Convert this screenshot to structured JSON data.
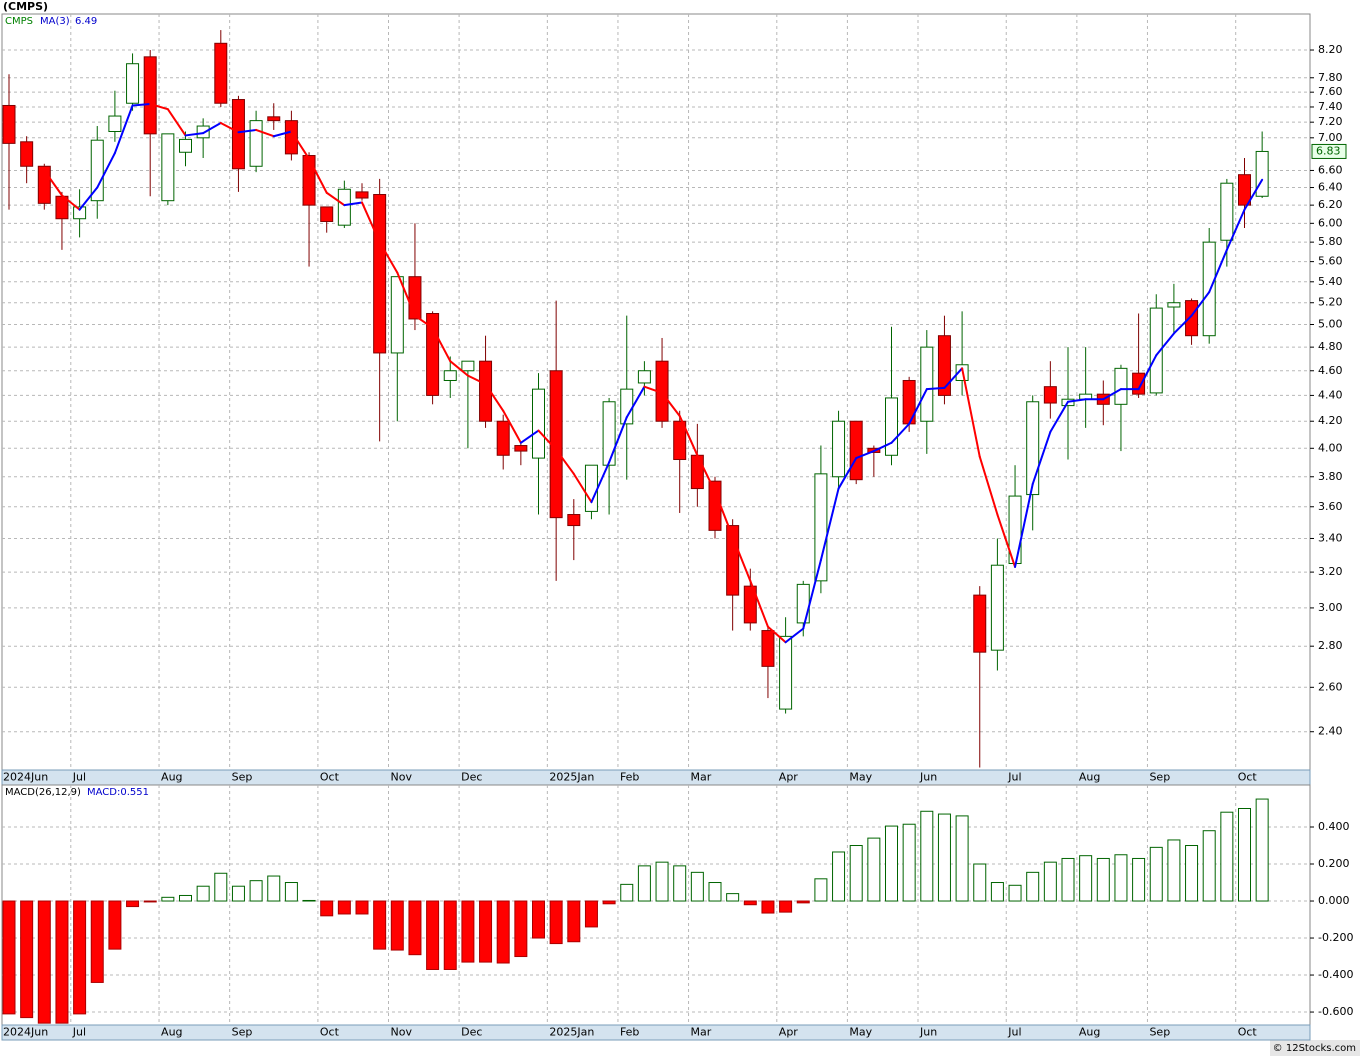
{
  "chart_data": [
    {
      "type": "candlestick",
      "title": "(CMPS)",
      "symbol": "CMPS",
      "symbol_color": "#008000",
      "categories": [
        "2024Jun",
        null,
        null,
        null,
        "Jul",
        null,
        null,
        null,
        null,
        "Aug",
        null,
        null,
        null,
        "Sep",
        null,
        null,
        null,
        null,
        "Oct",
        null,
        null,
        null,
        "Nov",
        null,
        null,
        null,
        "Dec",
        null,
        null,
        null,
        null,
        "2025Jan",
        null,
        null,
        null,
        "Feb",
        null,
        null,
        null,
        "Mar",
        null,
        null,
        null,
        null,
        "Apr",
        null,
        null,
        null,
        "May",
        null,
        null,
        null,
        "Jun",
        null,
        null,
        null,
        null,
        "Jul",
        null,
        null,
        null,
        "Aug",
        null,
        null,
        null,
        "Sep",
        null,
        null,
        null,
        null,
        "Oct",
        null
      ],
      "open": [
        7.42,
        6.95,
        6.65,
        6.3,
        6.05,
        6.25,
        7.08,
        7.45,
        8.1,
        6.25,
        6.82,
        7.0,
        8.3,
        7.5,
        6.65,
        7.27,
        7.22,
        6.78,
        6.18,
        5.98,
        6.35,
        6.32,
        4.75,
        5.45,
        5.1,
        4.52,
        4.6,
        4.68,
        4.2,
        4.02,
        3.93,
        4.6,
        3.55,
        3.57,
        3.88,
        4.18,
        4.5,
        4.68,
        4.2,
        3.95,
        3.77,
        3.48,
        3.12,
        2.88,
        2.5,
        2.92,
        3.15,
        3.8,
        4.2,
        4.0,
        3.95,
        4.52,
        4.2,
        4.9,
        4.52,
        3.07,
        2.78,
        3.25,
        3.68,
        4.47,
        4.32,
        4.37,
        4.41,
        4.33,
        4.58,
        4.42,
        5.16,
        5.22,
        4.9,
        5.82,
        6.55,
        6.3
      ],
      "high": [
        7.85,
        7.02,
        6.68,
        6.35,
        6.38,
        7.15,
        7.62,
        8.15,
        8.2,
        7.05,
        7.08,
        7.25,
        8.5,
        7.55,
        7.35,
        7.45,
        7.35,
        6.82,
        6.18,
        6.48,
        6.45,
        6.5,
        5.45,
        6.0,
        5.12,
        4.72,
        4.68,
        4.9,
        4.25,
        4.05,
        4.58,
        5.22,
        3.65,
        3.88,
        4.38,
        5.08,
        4.68,
        4.88,
        4.28,
        4.18,
        3.8,
        3.52,
        3.22,
        2.9,
        2.95,
        3.15,
        4.02,
        4.28,
        4.2,
        4.02,
        4.98,
        4.55,
        4.95,
        5.08,
        5.12,
        3.12,
        3.4,
        3.88,
        4.4,
        4.68,
        4.8,
        4.8,
        4.52,
        4.65,
        5.1,
        5.28,
        5.38,
        5.24,
        5.95,
        6.5,
        6.75,
        7.08
      ],
      "low": [
        6.15,
        6.45,
        6.15,
        5.72,
        5.85,
        6.05,
        6.95,
        7.35,
        6.3,
        6.2,
        6.65,
        6.75,
        7.4,
        6.35,
        6.58,
        7.1,
        6.72,
        5.55,
        5.9,
        5.95,
        6.25,
        4.05,
        4.2,
        4.95,
        4.33,
        4.38,
        4.0,
        4.15,
        3.85,
        3.88,
        3.55,
        3.15,
        3.27,
        3.52,
        3.55,
        3.78,
        4.4,
        4.15,
        3.56,
        3.6,
        3.4,
        2.88,
        2.88,
        2.55,
        2.48,
        2.85,
        3.08,
        3.72,
        3.75,
        3.8,
        3.88,
        4.12,
        3.96,
        4.33,
        4.4,
        2.25,
        2.68,
        3.25,
        3.45,
        4.22,
        3.92,
        4.15,
        4.17,
        3.98,
        4.38,
        4.4,
        4.92,
        4.82,
        4.83,
        5.55,
        5.95,
        6.28
      ],
      "close": [
        6.93,
        6.65,
        6.22,
        6.05,
        6.18,
        6.97,
        7.28,
        8.0,
        7.05,
        7.05,
        6.98,
        7.15,
        7.45,
        6.62,
        7.22,
        7.22,
        6.8,
        6.2,
        6.02,
        6.38,
        6.28,
        4.75,
        5.45,
        5.05,
        4.4,
        4.6,
        4.68,
        4.2,
        3.95,
        3.98,
        4.45,
        3.53,
        3.48,
        3.88,
        4.35,
        4.45,
        4.6,
        4.2,
        3.92,
        3.72,
        3.45,
        3.07,
        2.92,
        2.7,
        2.85,
        3.13,
        3.82,
        4.2,
        3.78,
        3.97,
        4.38,
        4.18,
        4.8,
        4.4,
        4.65,
        2.77,
        3.24,
        3.67,
        4.35,
        4.34,
        4.37,
        4.41,
        4.33,
        4.62,
        4.41,
        5.15,
        5.2,
        4.9,
        5.8,
        6.45,
        6.2,
        6.83
      ],
      "up_color": "#006400",
      "down_color": "#ff0000",
      "ma": {
        "name": "MA(3)",
        "color": "#0000cc",
        "up_color": "#0000ff",
        "down_color": "#ff0000",
        "values": [
          null,
          null,
          6.6,
          6.31,
          6.15,
          6.4,
          6.81,
          7.42,
          7.44,
          7.37,
          7.03,
          7.06,
          7.19,
          7.07,
          7.1,
          7.02,
          7.08,
          6.74,
          6.34,
          6.2,
          6.23,
          5.8,
          5.49,
          5.08,
          4.97,
          4.68,
          4.56,
          4.49,
          4.28,
          4.04,
          4.13,
          3.99,
          3.82,
          3.63,
          3.9,
          4.23,
          4.47,
          4.42,
          4.24,
          3.95,
          3.7,
          3.41,
          3.15,
          2.9,
          2.82,
          2.89,
          3.27,
          3.72,
          3.93,
          3.98,
          4.04,
          4.18,
          4.45,
          4.46,
          4.62,
          3.94,
          3.55,
          3.23,
          3.75,
          4.12,
          4.35,
          4.37,
          4.37,
          4.45,
          4.45,
          4.73,
          4.92,
          5.08,
          5.3,
          5.72,
          6.15,
          6.49
        ]
      },
      "log_scale": true,
      "grid": true,
      "ylim": [
        2.24,
        8.75
      ],
      "yticks": [
        {
          "value": 2.4,
          "label": "2.40"
        },
        {
          "value": 2.6,
          "label": "2.60"
        },
        {
          "value": 2.8,
          "label": "2.80"
        },
        {
          "value": 3.0,
          "label": "3.00"
        },
        {
          "value": 3.2,
          "label": "3.20"
        },
        {
          "value": 3.4,
          "label": "3.40"
        },
        {
          "value": 3.6,
          "label": "3.60"
        },
        {
          "value": 3.8,
          "label": "3.80"
        },
        {
          "value": 4.0,
          "label": "4.00"
        },
        {
          "value": 4.2,
          "label": "4.20"
        },
        {
          "value": 4.4,
          "label": "4.40"
        },
        {
          "value": 4.6,
          "label": "4.60"
        },
        {
          "value": 4.8,
          "label": "4.80"
        },
        {
          "value": 5.0,
          "label": "5.00"
        },
        {
          "value": 5.2,
          "label": "5.20"
        },
        {
          "value": 5.4,
          "label": "5.40"
        },
        {
          "value": 5.6,
          "label": "5.60"
        },
        {
          "value": 5.8,
          "label": "5.80"
        },
        {
          "value": 6.0,
          "label": "6.00"
        },
        {
          "value": 6.2,
          "label": "6.20"
        },
        {
          "value": 6.4,
          "label": "6.40"
        },
        {
          "value": 6.6,
          "label": "6.60"
        },
        {
          "value": 7.0,
          "label": "7.00"
        },
        {
          "value": 7.2,
          "label": "7.20"
        },
        {
          "value": 7.4,
          "label": "7.40"
        },
        {
          "value": 7.6,
          "label": "7.60"
        },
        {
          "value": 7.8,
          "label": "7.80"
        },
        {
          "value": 8.2,
          "label": "8.20"
        }
      ]
    },
    {
      "type": "bar",
      "name": "MACD(26,12,9)",
      "value_label": "MACD:0.551",
      "label_color": "#0000cc",
      "values": [
        -0.61,
        -0.63,
        -0.66,
        -0.66,
        -0.61,
        -0.44,
        -0.26,
        -0.03,
        -0.005,
        0.02,
        0.03,
        0.08,
        0.15,
        0.08,
        0.11,
        0.135,
        0.1,
        0.003,
        -0.08,
        -0.07,
        -0.07,
        -0.26,
        -0.265,
        -0.29,
        -0.37,
        -0.37,
        -0.33,
        -0.33,
        -0.335,
        -0.3,
        -0.2,
        -0.23,
        -0.22,
        -0.14,
        -0.015,
        0.09,
        0.19,
        0.21,
        0.19,
        0.155,
        0.1,
        0.04,
        -0.02,
        -0.065,
        -0.06,
        -0.01,
        0.12,
        0.265,
        0.3,
        0.34,
        0.405,
        0.415,
        0.485,
        0.47,
        0.46,
        0.2,
        0.1,
        0.085,
        0.155,
        0.21,
        0.23,
        0.245,
        0.23,
        0.25,
        0.23,
        0.29,
        0.33,
        0.3,
        0.38,
        0.48,
        0.5,
        0.551
      ],
      "up_color": "#006400",
      "down_color": "#ff0000",
      "grid": true,
      "ylim": [
        -0.67,
        0.627
      ],
      "yticks": [
        {
          "value": 0.4,
          "label": "0.400"
        },
        {
          "value": 0.2,
          "label": "0.200"
        },
        {
          "value": 0.0,
          "label": "0.000"
        },
        {
          "value": -0.2,
          "label": "-0.200"
        },
        {
          "value": -0.4,
          "label": "-0.400"
        },
        {
          "value": -0.6,
          "label": "-0.600"
        }
      ]
    }
  ],
  "footer": "© 12Stocks.com"
}
